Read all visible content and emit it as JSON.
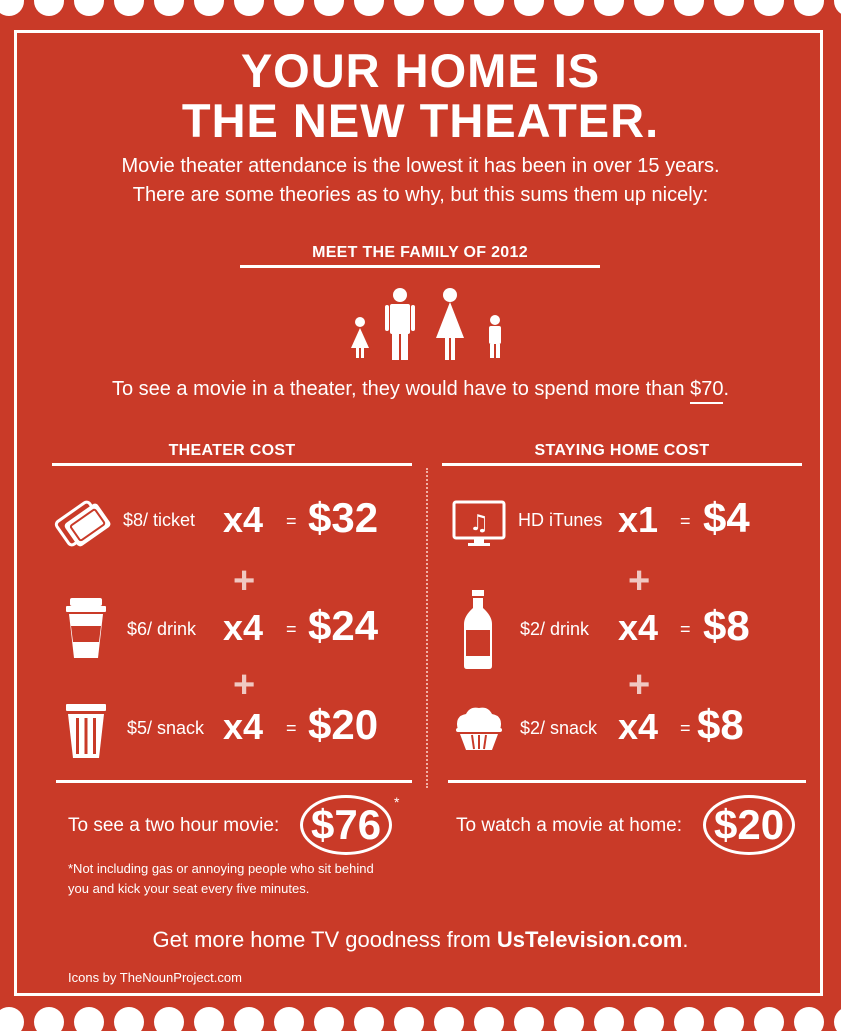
{
  "title": {
    "line1": "YOUR HOME IS",
    "line2": "THE NEW THEATER."
  },
  "intro": {
    "line1": "Movie theater attendance is the lowest it has been in over 15 years.",
    "line2": "There are some theories as to why, but this sums them up nicely:"
  },
  "family": {
    "heading": "MEET THE FAMILY OF 2012",
    "spend_text": "To see a movie in a theater, they would have to spend more than ",
    "spend_amount": "$70",
    "spend_end": "."
  },
  "theater": {
    "heading": "THEATER COST",
    "rows": [
      {
        "label": "$8/ ticket",
        "mult": "x4",
        "eq": "=",
        "total": "$32",
        "icon": "ticket-icon"
      },
      {
        "label": "$6/ drink",
        "mult": "x4",
        "eq": "=",
        "total": "$24",
        "icon": "cup-icon"
      },
      {
        "label": "$5/ snack",
        "mult": "x4",
        "eq": "=",
        "total": "$20",
        "icon": "popcorn-icon"
      }
    ],
    "summary_text": "To see a two hour movie:",
    "summary_total": "$76",
    "asterisk": "*",
    "footnote_line1": "*Not including gas or annoying people who sit behind",
    "footnote_line2": "you and kick your seat every five minutes."
  },
  "home": {
    "heading": "STAYING HOME COST",
    "rows": [
      {
        "label": "HD iTunes",
        "mult": "x1",
        "eq": "=",
        "total": "$4",
        "icon": "tv-icon"
      },
      {
        "label": "$2/ drink",
        "mult": "x4",
        "eq": "=",
        "total": "$8",
        "icon": "bottle-icon"
      },
      {
        "label": "$2/ snack",
        "mult": "x4",
        "eq": "=",
        "total": "$8",
        "icon": "cupcake-icon"
      }
    ],
    "summary_text": "To watch a movie at home:",
    "summary_total": "$20"
  },
  "plus": "+",
  "cta": {
    "text": "Get more home TV goodness from ",
    "site": "UsTelevision.com",
    "end": "."
  },
  "credits": "Icons by TheNounProject.com",
  "colors": {
    "background": "#c93a28",
    "foreground": "#ffffff",
    "plus": "#f0c8c2"
  }
}
